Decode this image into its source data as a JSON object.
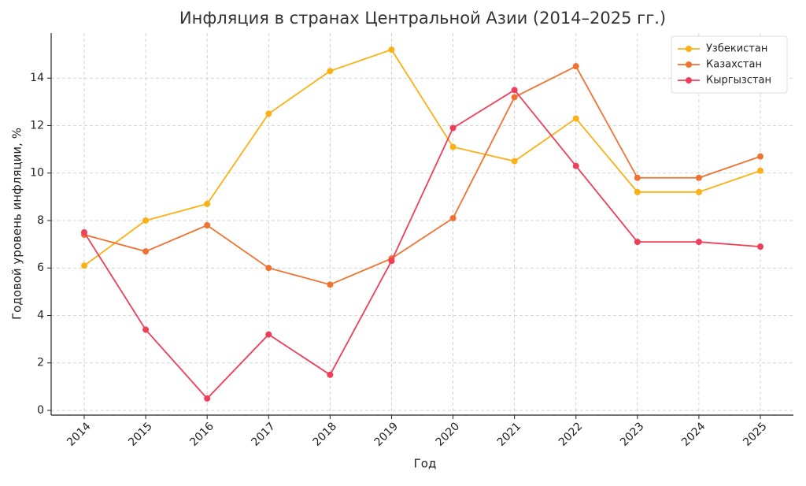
{
  "chart_data": {
    "type": "line",
    "title": "Инфляция в странах Центральной Азии (2014–2025 гг.)",
    "x_label": "Год",
    "y_label": "Годовой уровень инфляции, %",
    "categories": [
      "2014",
      "2015",
      "2016",
      "2017",
      "2018",
      "2019",
      "2020",
      "2021",
      "2022",
      "2023",
      "2024",
      "2025"
    ],
    "series": [
      {
        "name": "Узбекистан",
        "color": "#fbb013",
        "values": [
          6.1,
          8.0,
          8.7,
          12.5,
          14.3,
          15.2,
          11.1,
          10.5,
          12.3,
          9.2,
          9.2,
          10.1
        ]
      },
      {
        "name": "Казахстан",
        "color": "#f07230",
        "values": [
          7.4,
          6.7,
          7.8,
          6.0,
          5.3,
          6.4,
          8.1,
          13.2,
          14.5,
          9.8,
          9.8,
          10.7
        ]
      },
      {
        "name": "Кыргызстан",
        "color": "#ef3e5a",
        "values": [
          7.5,
          3.4,
          0.5,
          3.2,
          1.5,
          6.3,
          11.9,
          13.5,
          10.3,
          7.1,
          7.1,
          6.9
        ]
      }
    ],
    "ylim": [
      -0.2,
      15.9
    ],
    "yticks": [
      0,
      2,
      4,
      6,
      8,
      10,
      12,
      14
    ],
    "grid": true,
    "legend": "upper right"
  }
}
